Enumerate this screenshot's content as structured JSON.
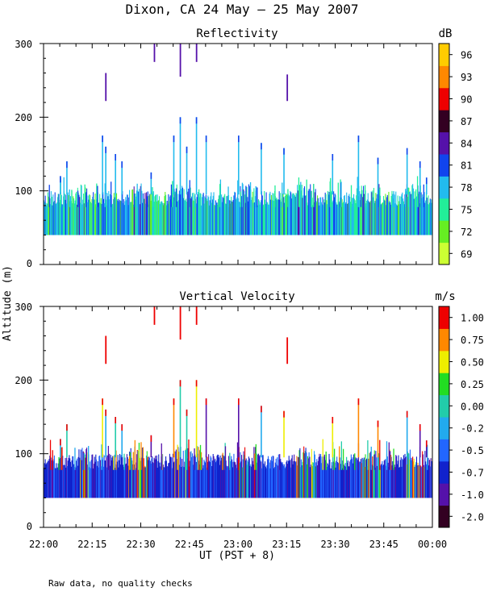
{
  "title": "Dixon, CA 24 May – 25 May 2007",
  "footnote": "Raw data, no quality checks",
  "ylabel": "Altitude (m)",
  "xlabel": "UT  (PST + 8)",
  "chart_data": [
    {
      "type": "heatmap",
      "title": "Reflectivity",
      "units": "dB",
      "ylim": [
        0,
        300
      ],
      "yticks": [
        "0",
        "100",
        "200",
        "300"
      ],
      "xlim_minutes": [
        0,
        120
      ],
      "xtick_labels": [
        "22:00",
        "22:15",
        "22:30",
        "22:45",
        "23:00",
        "23:15",
        "23:30",
        "23:45",
        "00:00"
      ],
      "colorbar": {
        "labels": [
          "69",
          "72",
          "75",
          "78",
          "81",
          "84",
          "87",
          "90",
          "93",
          "96"
        ],
        "colors": [
          "#ccff33",
          "#66ee22",
          "#22ee99",
          "#22bbee",
          "#1144ee",
          "#5511aa",
          "#330022",
          "#ee0000",
          "#ff8800",
          "#ffcc00"
        ]
      },
      "data_description": "Dense echoes from 40 to ~100 m altitude across 22:00–00:00 UT, values mostly 72–81 dB; scattered plumes up to ~200 m and isolated returns near 220–300 m (~84 dB) around 22:18, 22:34, 22:43, 22:47 and 23:15."
    },
    {
      "type": "heatmap",
      "title": "Vertical Velocity",
      "units": "m/s",
      "ylim": [
        0,
        300
      ],
      "yticks": [
        "0",
        "100",
        "200",
        "300"
      ],
      "xlim_minutes": [
        0,
        120
      ],
      "xtick_labels": [
        "22:00",
        "22:15",
        "22:30",
        "22:45",
        "23:00",
        "23:15",
        "23:30",
        "23:45",
        "00:00"
      ],
      "colorbar": {
        "labels": [
          "-2.00",
          "-1.00",
          "-0.75",
          "-0.50",
          "-0.25",
          "0.00",
          "0.25",
          "0.50",
          "0.75",
          "1.00"
        ],
        "colors": [
          "#330022",
          "#5511aa",
          "#1122cc",
          "#2266ff",
          "#22aaee",
          "#22ccaa",
          "#22dd22",
          "#eeee00",
          "#ff8800",
          "#ee0000"
        ],
        "extra_top_color": "#ff2200"
      },
      "data_description": "Predominantly downward motion (about -0.5 to -0.75 m/s, blue) in the 40–100 m layer; isolated upward (~1 m/s, red) returns in plumes to ~200 m and near 220–300 m."
    }
  ]
}
